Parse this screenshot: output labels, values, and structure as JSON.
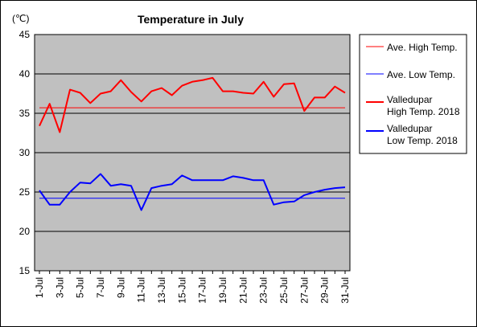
{
  "chart_data": {
    "type": "line",
    "title": "Temperature in July",
    "unit_label": "(℃)",
    "xlabel": "",
    "ylabel": "",
    "ylim": [
      15,
      45
    ],
    "yticks": [
      15,
      20,
      25,
      30,
      35,
      40,
      45
    ],
    "grid": "horizontal",
    "plot_background": "#c0c0c0",
    "legend_position": "right",
    "x": [
      "1-Jul",
      "2-Jul",
      "3-Jul",
      "4-Jul",
      "5-Jul",
      "6-Jul",
      "7-Jul",
      "8-Jul",
      "9-Jul",
      "10-Jul",
      "11-Jul",
      "12-Jul",
      "13-Jul",
      "14-Jul",
      "15-Jul",
      "16-Jul",
      "17-Jul",
      "18-Jul",
      "19-Jul",
      "20-Jul",
      "21-Jul",
      "22-Jul",
      "23-Jul",
      "24-Jul",
      "25-Jul",
      "26-Jul",
      "27-Jul",
      "28-Jul",
      "29-Jul",
      "30-Jul",
      "31-Jul"
    ],
    "xtick_labels": [
      "1-Jul",
      "3-Jul",
      "5-Jul",
      "7-Jul",
      "9-Jul",
      "11-Jul",
      "13-Jul",
      "15-Jul",
      "17-Jul",
      "19-Jul",
      "21-Jul",
      "23-Jul",
      "25-Jul",
      "27-Jul",
      "29-Jul",
      "31-Jul"
    ],
    "series": [
      {
        "name": "Ave. High Temp.",
        "color": "#ff0000",
        "width": 1,
        "values": [
          35.7,
          35.7,
          35.7,
          35.7,
          35.7,
          35.7,
          35.7,
          35.7,
          35.7,
          35.7,
          35.7,
          35.7,
          35.7,
          35.7,
          35.7,
          35.7,
          35.7,
          35.7,
          35.7,
          35.7,
          35.7,
          35.7,
          35.7,
          35.7,
          35.7,
          35.7,
          35.7,
          35.7,
          35.7,
          35.7,
          35.7
        ]
      },
      {
        "name": "Ave. Low Temp.",
        "color": "#0000ff",
        "width": 1,
        "values": [
          24.2,
          24.2,
          24.2,
          24.2,
          24.2,
          24.2,
          24.2,
          24.2,
          24.2,
          24.2,
          24.2,
          24.2,
          24.2,
          24.2,
          24.2,
          24.2,
          24.2,
          24.2,
          24.2,
          24.2,
          24.2,
          24.2,
          24.2,
          24.2,
          24.2,
          24.2,
          24.2,
          24.2,
          24.2,
          24.2,
          24.2
        ]
      },
      {
        "name": "Valledupar\nHigh Temp. 2018",
        "color": "#ff0000",
        "width": 2,
        "values": [
          33.4,
          36.2,
          32.6,
          38.0,
          37.6,
          36.3,
          37.5,
          37.8,
          39.2,
          37.7,
          36.5,
          37.8,
          38.2,
          37.3,
          38.5,
          39.0,
          39.2,
          39.5,
          37.8,
          37.8,
          37.6,
          37.5,
          39.0,
          37.1,
          38.7,
          38.8,
          35.3,
          37.0,
          37.0,
          38.4,
          37.6
        ]
      },
      {
        "name": "Valledupar\nLow Temp. 2018",
        "color": "#0000ff",
        "width": 2,
        "values": [
          25.2,
          23.4,
          23.4,
          25.0,
          26.2,
          26.1,
          27.3,
          25.8,
          26.0,
          25.8,
          22.7,
          25.5,
          25.8,
          26.0,
          27.1,
          26.5,
          26.5,
          26.5,
          26.5,
          27.0,
          26.8,
          26.5,
          26.5,
          23.4,
          23.7,
          23.8,
          24.6,
          25.0,
          25.3,
          25.5,
          25.6
        ]
      }
    ]
  }
}
